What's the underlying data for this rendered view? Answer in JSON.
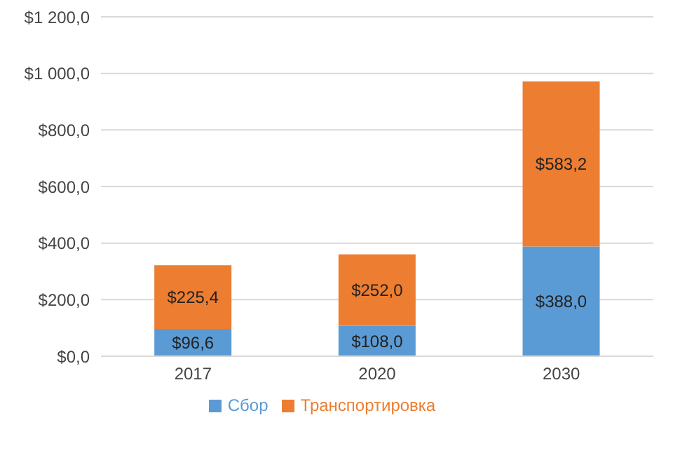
{
  "chart_data": {
    "type": "bar",
    "stacked": true,
    "categories": [
      "2017",
      "2020",
      "2030"
    ],
    "series": [
      {
        "name": "Сбор",
        "color": "#5b9bd5",
        "values": [
          96.6,
          108.0,
          388.0
        ],
        "value_labels": [
          "$96,6",
          "$108,0",
          "$388,0"
        ]
      },
      {
        "name": "Транспортировка",
        "color": "#ed7d31",
        "values": [
          225.4,
          252.0,
          583.2
        ],
        "value_labels": [
          "$225,4",
          "$252,0",
          "$583,2"
        ]
      }
    ],
    "ylim": [
      0,
      1200
    ],
    "yticks": [
      {
        "value": 0,
        "label": "$0,0"
      },
      {
        "value": 200,
        "label": "$200,0"
      },
      {
        "value": 400,
        "label": "$400,0"
      },
      {
        "value": 600,
        "label": "$600,0"
      },
      {
        "value": 800,
        "label": "$800,0"
      },
      {
        "value": 1000,
        "label": "$1 000,0"
      },
      {
        "value": 1200,
        "label": "$1 200,0"
      }
    ],
    "grid": "y",
    "legend": "bottom"
  }
}
